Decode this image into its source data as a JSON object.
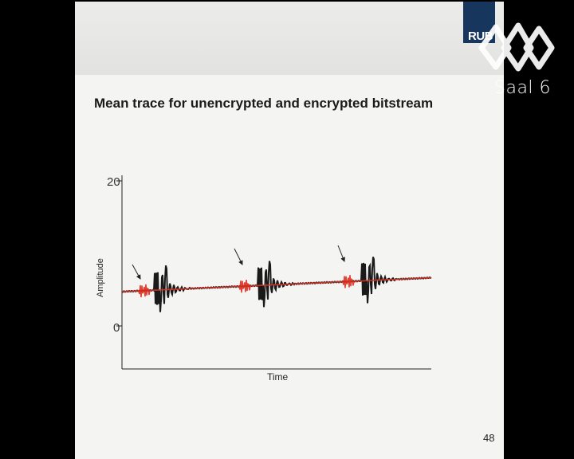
{
  "slide": {
    "title": "Mean trace for unencrypted and encrypted bitstream",
    "page_number": "48",
    "logo_text": "RUB"
  },
  "overlay": {
    "room_label": "Saal 6",
    "logo_icon": "saal-logo-icon"
  },
  "chart_data": {
    "type": "line",
    "title": "",
    "xlabel": "Time",
    "ylabel": "Amplitude",
    "yticks": [
      "20",
      "0"
    ],
    "ylim": [
      -5,
      20
    ],
    "series": [
      {
        "color": "#1a1a1a",
        "values": []
      },
      {
        "color": "#e03020",
        "values": []
      }
    ],
    "annotations": [
      "arrow",
      "arrow",
      "arrow"
    ]
  }
}
